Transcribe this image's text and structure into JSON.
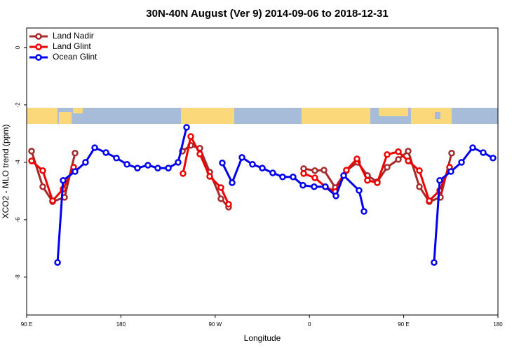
{
  "chart_data": {
    "type": "line",
    "title": "30N-40N August (Ver 9)   2014-09-06 to 2018-12-31",
    "xlabel": "Longitude",
    "ylabel": "XCO2 - MLO trend (ppm)",
    "xlim": [
      90,
      540
    ],
    "xticks": [
      {
        "value": 90,
        "label": "90 E"
      },
      {
        "value": 180,
        "label": "180"
      },
      {
        "value": 270,
        "label": "90 W"
      },
      {
        "value": 360,
        "label": "0"
      },
      {
        "value": 450,
        "label": "90 E"
      },
      {
        "value": 540,
        "label": "180"
      }
    ],
    "ylim": [
      -9.32,
      0.68
    ],
    "yticks": [
      0,
      -2,
      -4,
      -6,
      -8
    ],
    "legend": "top-left",
    "series": [
      {
        "name": "Land Nadir",
        "color": "#a52a2a",
        "x": [
          94.7,
          105.4,
          114.8,
          126.2,
          136.2,
          null,
          238.7,
          246.7,
          255.4,
          264.8,
          275.5,
          282.8,
          null,
          354.5,
          365.2,
          373.9,
          384.6,
          395.3,
          406,
          415.4,
          424.8,
          434.2,
          444.9,
          454.3,
          465,
          474.4,
          485.1,
          495.8
        ],
        "values": [
          -3.61,
          -4.85,
          -5.37,
          -5.22,
          -3.68,
          null,
          -3.61,
          -3.41,
          -3.51,
          -4.34,
          -5.27,
          -5.56,
          null,
          -4.22,
          -4.29,
          -4.27,
          -4.88,
          -4.29,
          -4.0,
          -4.46,
          -4.68,
          -4.17,
          -3.9,
          -3.61,
          -4.85,
          -5.37,
          -5.22,
          -3.68
        ]
      },
      {
        "name": "Land Glint",
        "color": "#ee0000",
        "x": [
          94.7,
          105.4,
          114.8,
          124.8,
          134.9,
          null,
          239.3,
          246.7,
          255.4,
          264.8,
          275.5,
          282.8,
          null,
          354.5,
          365.2,
          375.2,
          384.6,
          395.3,
          405.4,
          415.4,
          424.8,
          434.2,
          444.9,
          454.3,
          465,
          474.4,
          484.4,
          493.8
        ],
        "values": [
          -3.95,
          -4.29,
          -5.34,
          -4.93,
          -4.17,
          null,
          -4.39,
          -3.1,
          -3.71,
          -4.49,
          -4.88,
          -5.46,
          null,
          -4.39,
          -4.54,
          -4.85,
          -5.02,
          -4.27,
          -3.88,
          -4.63,
          -4.71,
          -3.73,
          -3.63,
          -3.95,
          -4.29,
          -5.34,
          -4.98,
          -4.17
        ]
      },
      {
        "name": "Ocean Glint",
        "color": "#0000ee",
        "x": [
          119.5,
          124.8,
          136.2,
          146.2,
          155,
          165.7,
          175.7,
          185.8,
          195.8,
          205.8,
          215.2,
          225.3,
          234.6,
          242.7,
          null,
          276.8,
          286.2,
          295.6,
          305.6,
          315,
          325,
          334.4,
          344.4,
          353.8,
          364.5,
          375.2,
          385.3,
          392.7,
          407.4,
          412.1,
          null,
          479,
          484.4,
          495.1,
          505.2,
          515.9,
          525.9,
          535.3
        ],
        "values": [
          -7.49,
          -4.63,
          -4.32,
          -4.0,
          -3.49,
          -3.66,
          -3.85,
          -4.07,
          -4.2,
          -4.1,
          -4.2,
          -4.2,
          -4.0,
          -2.78,
          null,
          -4.02,
          -4.71,
          -3.83,
          -4.07,
          -4.2,
          -4.37,
          -4.51,
          -4.51,
          -4.8,
          -4.85,
          -4.85,
          -5.17,
          -4.46,
          -4.98,
          -5.71,
          null,
          -7.49,
          -4.63,
          -4.32,
          -4.0,
          -3.49,
          -3.66,
          -3.85
        ]
      }
    ]
  }
}
